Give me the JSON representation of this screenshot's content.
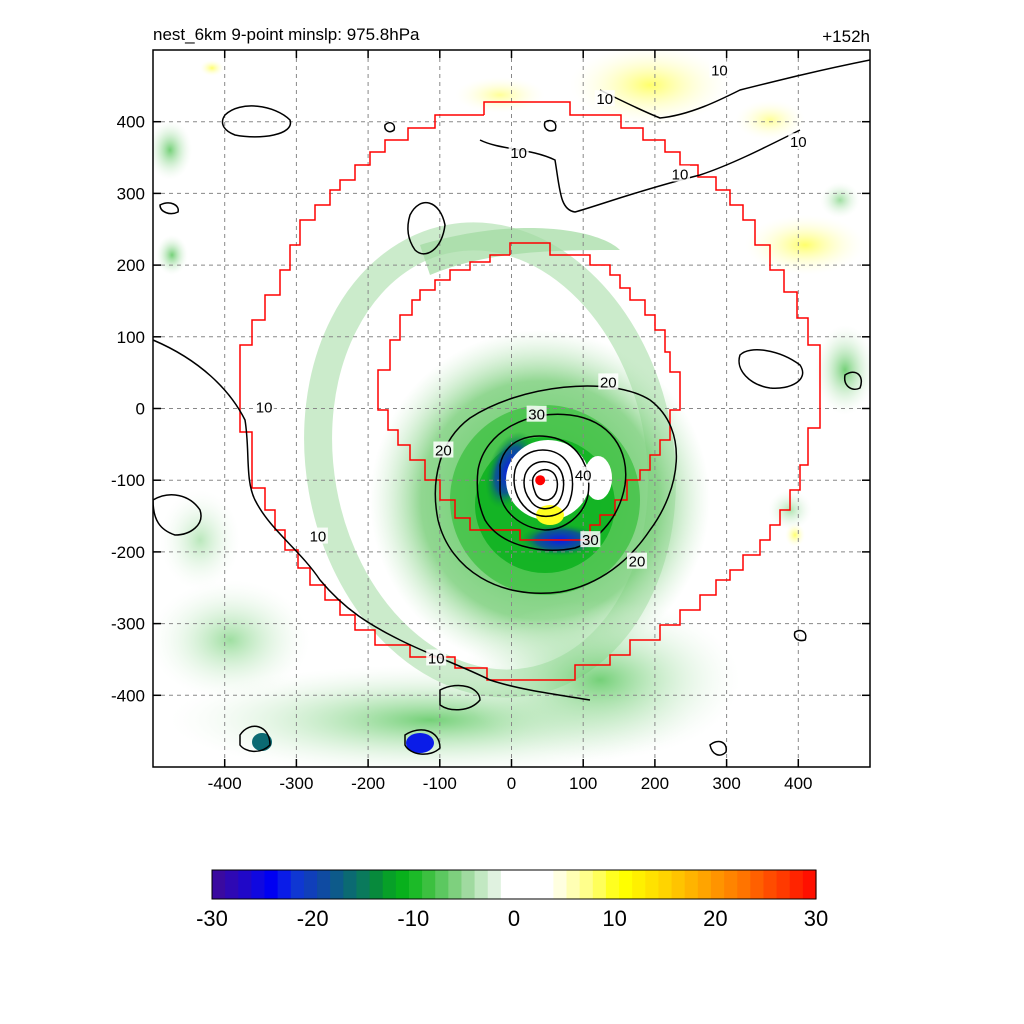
{
  "chart_data": {
    "type": "heatmap",
    "title_left": "nest_6km  9-point minslp: 975.8hPa",
    "title_right": "+152h",
    "xlim": [
      -500,
      500
    ],
    "ylim": [
      -500,
      500
    ],
    "x_ticks": [
      -400,
      -300,
      -200,
      -100,
      0,
      100,
      200,
      300,
      400
    ],
    "y_ticks": [
      400,
      300,
      200,
      100,
      0,
      -100,
      -200,
      -300,
      -400
    ],
    "grid": "dashed",
    "center_marker": {
      "x": 40,
      "y": -100,
      "color": "#ff0000"
    },
    "colorbar": {
      "min": -30,
      "max": 30,
      "tick_values": [
        -30,
        -20,
        -10,
        0,
        10,
        20,
        30
      ],
      "colors": [
        "#3a0aa0",
        "#2e09b4",
        "#2008c8",
        "#1008e0",
        "#0000f2",
        "#0a1ce8",
        "#0f37d2",
        "#103fba",
        "#0f4ba2",
        "#0d5a8a",
        "#0b6a72",
        "#0a7a5c",
        "#078a3c",
        "#07a028",
        "#08b01c",
        "#1cba28",
        "#3cc040",
        "#5cc860",
        "#7ed07e",
        "#a0daa0",
        "#c2e8c2",
        "#e0f2e0",
        "#ffffff",
        "#ffffff",
        "#ffffff",
        "#ffffff",
        "#ffffe0",
        "#ffffb4",
        "#ffff8c",
        "#ffff5a",
        "#ffff20",
        "#ffff00",
        "#fff000",
        "#ffe200",
        "#ffd400",
        "#ffc400",
        "#ffb400",
        "#ffa400",
        "#ff9400",
        "#ff8400",
        "#ff7400",
        "#ff6000",
        "#ff4c00",
        "#ff3a00",
        "#ff2400",
        "#ff1000"
      ]
    },
    "contour_labels": [
      {
        "text": "10",
        "x": 290,
        "y": 470
      },
      {
        "text": "10",
        "x": 130,
        "y": 430
      },
      {
        "text": "10",
        "x": 400,
        "y": 370
      },
      {
        "text": "10",
        "x": 10,
        "y": 355
      },
      {
        "text": "10",
        "x": 235,
        "y": 325
      },
      {
        "text": "10",
        "x": -345,
        "y": 0
      },
      {
        "text": "10",
        "x": -270,
        "y": -180
      },
      {
        "text": "10",
        "x": -105,
        "y": -350
      },
      {
        "text": "20",
        "x": 135,
        "y": 35
      },
      {
        "text": "20",
        "x": -95,
        "y": -60
      },
      {
        "text": "20",
        "x": 175,
        "y": -215
      },
      {
        "text": "30",
        "x": 35,
        "y": -10
      },
      {
        "text": "30",
        "x": 110,
        "y": -185
      },
      {
        "text": "40",
        "x": 100,
        "y": -95
      }
    ]
  }
}
